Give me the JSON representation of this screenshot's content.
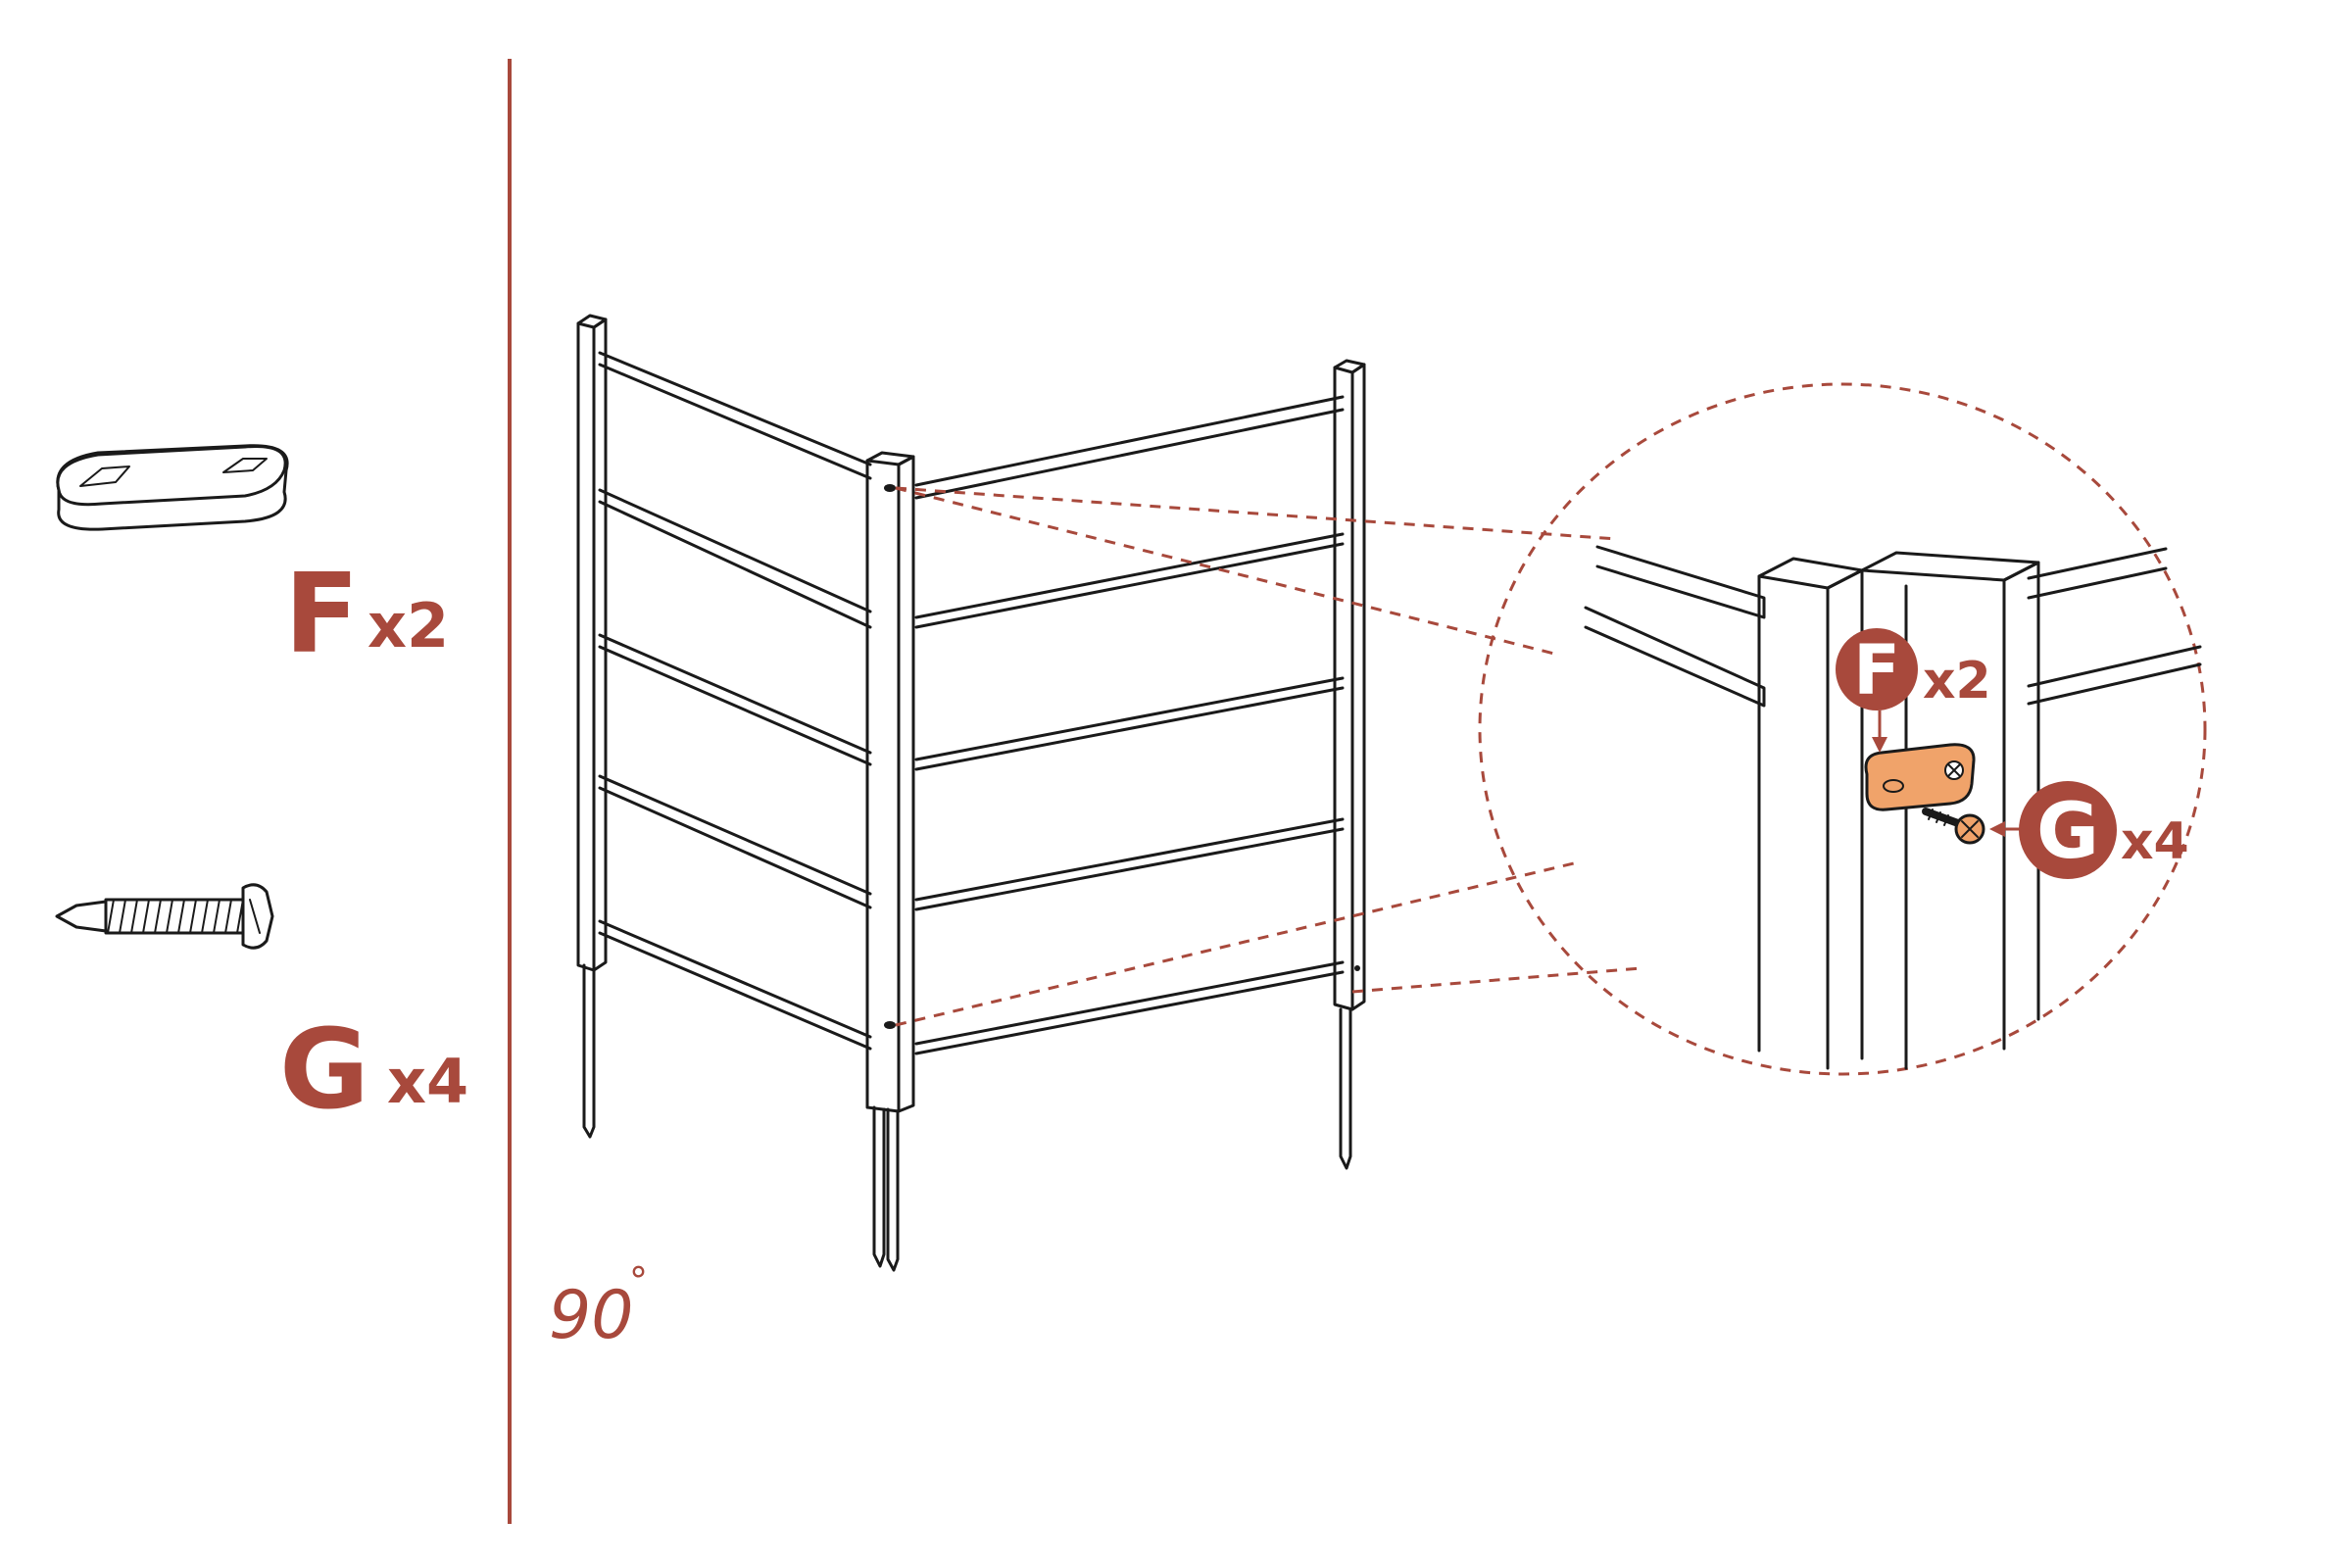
{
  "colors": {
    "accent": "#a8493c",
    "fastener_highlight": "#f0a36a",
    "line": "#1a1a1a",
    "background": "#ffffff"
  },
  "parts": [
    {
      "letter": "F",
      "quantity": "x2",
      "icon": "connector-plate-icon"
    },
    {
      "letter": "G",
      "quantity": "x4",
      "icon": "self-drilling-screw-icon"
    }
  ],
  "angle_label": "90",
  "angle_unit": "°",
  "detail": {
    "callouts": [
      {
        "letter": "F",
        "quantity": "x2"
      },
      {
        "letter": "G",
        "quantity": "x4"
      }
    ]
  }
}
